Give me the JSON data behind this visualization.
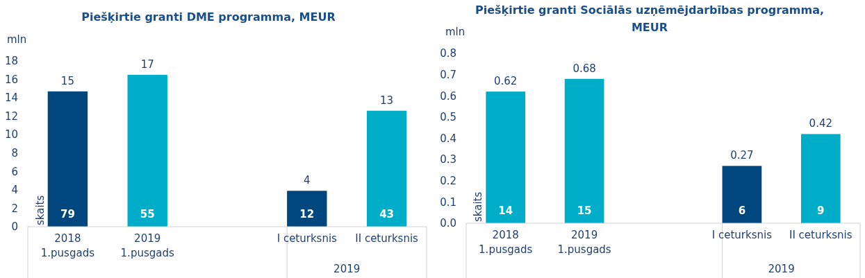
{
  "chart_data": [
    {
      "type": "bar",
      "title": "Piešķirtie granti DME programma, MEUR",
      "ylabel": "mln",
      "categories": [
        "2018\n1.pusgads",
        "2019\n1.pusgads",
        null,
        "I ceturksnis",
        "II ceturksnis"
      ],
      "values": [
        14.7,
        16.5,
        null,
        3.9,
        12.6
      ],
      "value_labels": [
        "15",
        "17",
        null,
        "4",
        "13"
      ],
      "colors": [
        "#00467f",
        "#00adc9",
        null,
        "#00467f",
        "#00adc9"
      ],
      "ylim": [
        0,
        18
      ],
      "yticks": [
        0,
        2,
        4,
        6,
        8,
        10,
        12,
        14,
        16,
        18
      ],
      "grid": false,
      "annotations": [
        "skaits",
        "2019",
        "79",
        "55",
        "12",
        "43"
      ]
    },
    {
      "type": "bar",
      "title": "Piešķirtie granti Sociālās uzņēmējdarbības programma, MEUR",
      "ylabel": "mln",
      "categories": [
        "2018\n1.pusgads",
        "2019\n1.pusgads",
        null,
        "I ceturksnis",
        "II ceturksnis"
      ],
      "values": [
        0.62,
        0.68,
        null,
        0.27,
        0.42
      ],
      "data_labels": true,
      "colors": [
        "#00adc9",
        "#00adc9",
        null,
        "#00467f",
        "#00adc9"
      ],
      "ylim": [
        0,
        0.8
      ],
      "yticks": [
        {
          "value": 0,
          "label": "0.0"
        },
        0.1,
        0.2,
        0.3,
        0.4,
        0.5,
        0.6,
        0.7,
        0.8
      ],
      "grid": false,
      "annotations": [
        "skaits",
        "2019",
        "14",
        "15",
        "6",
        "9"
      ]
    }
  ]
}
